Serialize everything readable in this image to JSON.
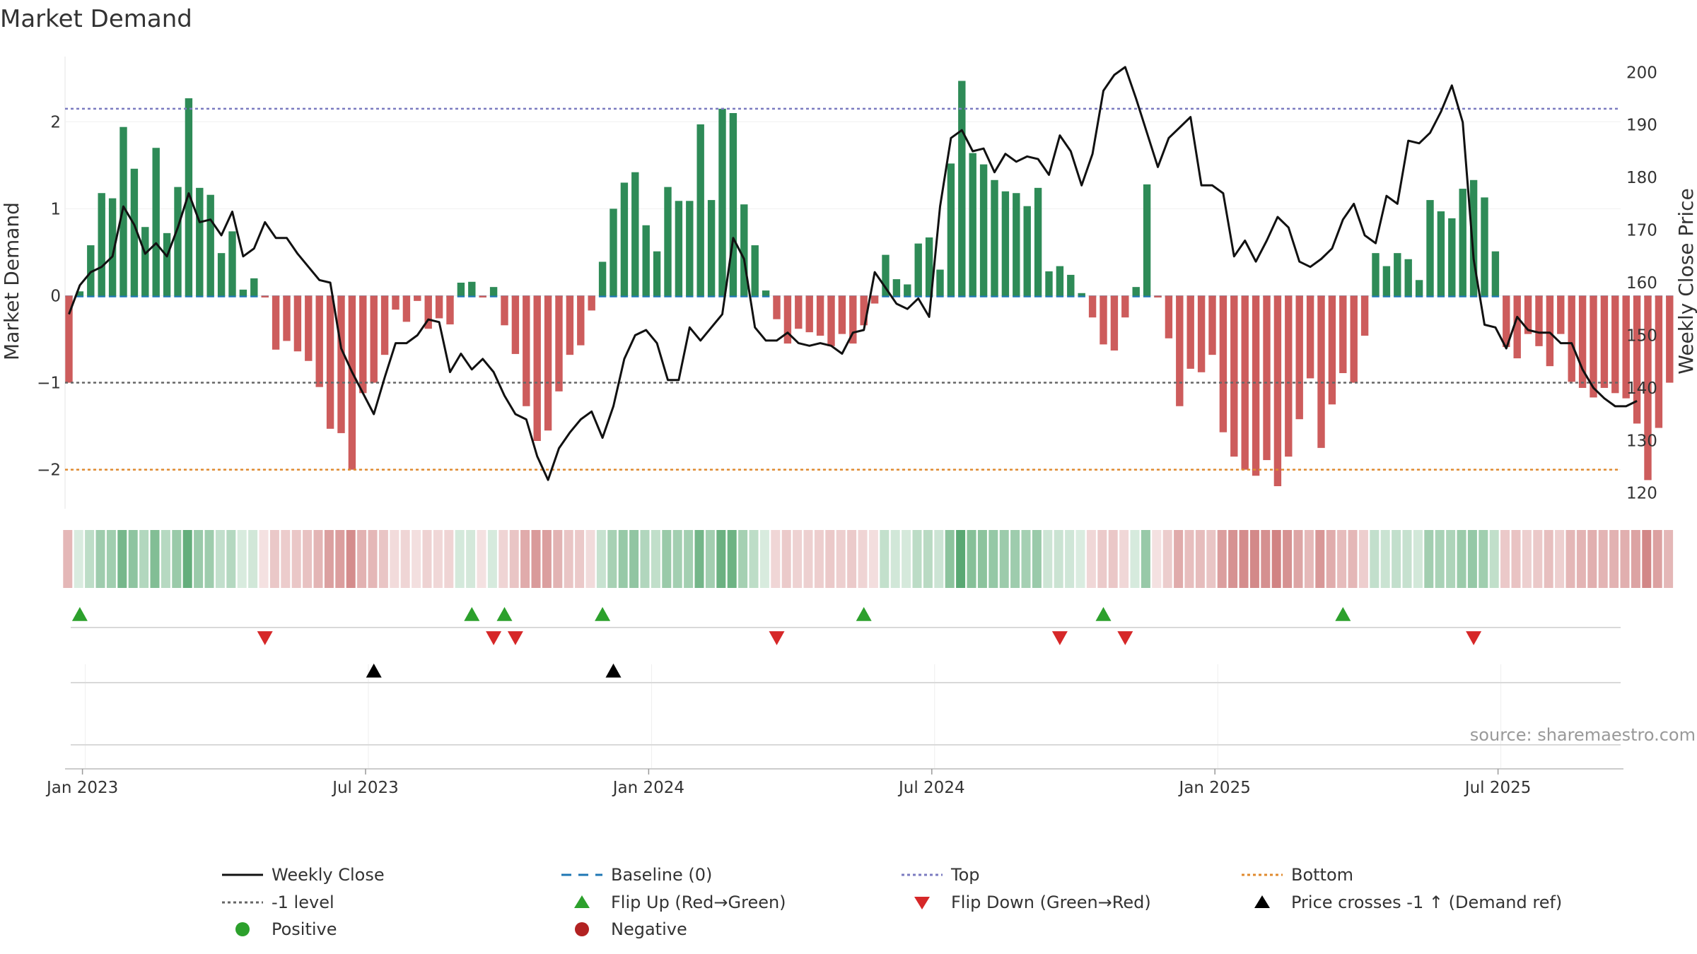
{
  "chart_data": {
    "type": "bar",
    "title": "Market Demand",
    "ylabel_left": "Market Demand",
    "ylabel_right": "Weekly Close Price",
    "source_note": "source: sharemaestro.com",
    "ylim_left": [
      -2.45,
      2.75
    ],
    "ylim_right": [
      117,
      203
    ],
    "yticks_left": [
      {
        "value": 2,
        "label": "2"
      },
      {
        "value": 1,
        "label": "1"
      },
      {
        "value": 0,
        "label": "0"
      },
      {
        "value": -1,
        "label": "−1"
      },
      {
        "value": -2,
        "label": "−2"
      }
    ],
    "yticks_right": [
      {
        "value": 200,
        "label": "200"
      },
      {
        "value": 190,
        "label": "190"
      },
      {
        "value": 180,
        "label": "180"
      },
      {
        "value": 170,
        "label": "170"
      },
      {
        "value": 160,
        "label": "160"
      },
      {
        "value": 150,
        "label": "150"
      },
      {
        "value": 140,
        "label": "140"
      },
      {
        "value": 130,
        "label": "130"
      },
      {
        "value": 120,
        "label": "120"
      }
    ],
    "xticks": [
      {
        "index": 1.5,
        "label": "Jan 2023"
      },
      {
        "index": 27.5,
        "label": "Jul 2023"
      },
      {
        "index": 53.5,
        "label": "Jan 2024"
      },
      {
        "index": 79.5,
        "label": "Jul 2024"
      },
      {
        "index": 105.5,
        "label": "Jan 2025"
      },
      {
        "index": 131.5,
        "label": "Jul 2025"
      }
    ],
    "reference_lines": {
      "top": 2.15,
      "minus_one": -1,
      "bottom": -2,
      "baseline": 0
    },
    "series": [
      {
        "name": "Market Demand",
        "values": [
          -1.0,
          0.05,
          0.58,
          1.18,
          1.12,
          1.94,
          1.46,
          0.79,
          1.7,
          0.72,
          1.25,
          2.27,
          1.24,
          1.16,
          0.49,
          0.74,
          0.07,
          0.2,
          -0.02,
          -0.62,
          -0.52,
          -0.64,
          -0.75,
          -1.05,
          -1.53,
          -1.58,
          -2.0,
          -1.12,
          -1.0,
          -0.68,
          -0.16,
          -0.3,
          -0.06,
          -0.38,
          -0.26,
          -0.33,
          0.15,
          0.16,
          -0.02,
          0.1,
          -0.34,
          -0.67,
          -1.27,
          -1.67,
          -1.55,
          -1.1,
          -0.68,
          -0.57,
          -0.17,
          0.39,
          1.0,
          1.3,
          1.42,
          0.81,
          0.51,
          1.25,
          1.09,
          1.09,
          1.97,
          1.1,
          2.15,
          2.1,
          1.05,
          0.58,
          0.06,
          -0.27,
          -0.55,
          -0.38,
          -0.42,
          -0.46,
          -0.58,
          -0.44,
          -0.55,
          -0.34,
          -0.09,
          0.47,
          0.19,
          0.13,
          0.6,
          0.67,
          0.3,
          1.52,
          2.47,
          1.64,
          1.51,
          1.33,
          1.2,
          1.18,
          1.03,
          1.24,
          0.28,
          0.34,
          0.24,
          0.03,
          -0.25,
          -0.56,
          -0.63,
          -0.25,
          0.1,
          1.28,
          -0.02,
          -0.49,
          -1.27,
          -0.84,
          -0.88,
          -0.68,
          -1.57,
          -1.85,
          -2.0,
          -2.07,
          -1.89,
          -2.19,
          -1.85,
          -1.42,
          -0.95,
          -1.75,
          -1.25,
          -0.89,
          -1.0,
          -0.46,
          0.49,
          0.34,
          0.49,
          0.42,
          0.18,
          1.1,
          0.97,
          0.89,
          1.23,
          1.33,
          1.13,
          0.51,
          -0.59,
          -0.72,
          -0.44,
          -0.58,
          -0.81,
          -0.44,
          -0.99,
          -1.06,
          -1.17,
          -1.06,
          -1.12,
          -1.18,
          -1.47,
          -2.12,
          -1.52,
          -1.0
        ]
      },
      {
        "name": "Weekly Close",
        "values": [
          154,
          159.5,
          162,
          163,
          165,
          174.5,
          171,
          165.5,
          167.5,
          165,
          170.5,
          177,
          171.5,
          172,
          169,
          173.5,
          165,
          166.5,
          171.5,
          168.5,
          168.5,
          165.5,
          163,
          160.5,
          160,
          147.5,
          143,
          139,
          135,
          142,
          148.5,
          148.5,
          150,
          153,
          152.5,
          143,
          146.5,
          143.5,
          145.5,
          143,
          138.5,
          135,
          134,
          127,
          122.5,
          128.5,
          131.5,
          134,
          135.5,
          130.5,
          136.5,
          145.5,
          150,
          151,
          148.5,
          141.5,
          141.5,
          151.5,
          149,
          151.5,
          154,
          168.5,
          164.5,
          151.5,
          149,
          149,
          150.5,
          148.5,
          148,
          148.5,
          148,
          146.5,
          150.5,
          151,
          162,
          159,
          156,
          155,
          157,
          153.5,
          174.5,
          187.5,
          189,
          185,
          185.5,
          181,
          184.5,
          183,
          184,
          183.5,
          180.5,
          188,
          185,
          178.5,
          184.5,
          196.5,
          199.5,
          201,
          195,
          188.5,
          182,
          187.5,
          189.5,
          191.5,
          178.5,
          178.5,
          177,
          165,
          168,
          164,
          168,
          172.5,
          170.5,
          164,
          163,
          164.5,
          166.5,
          172,
          175,
          169,
          167.5,
          176.5,
          175,
          187,
          186.5,
          188.5,
          192.5,
          197.5,
          190.5,
          164.5,
          152,
          151.5,
          147.5,
          153.5,
          151,
          150.5,
          150.5,
          148.5,
          148.5,
          143.5,
          140,
          138,
          136.5,
          136.5,
          137.5
        ]
      }
    ],
    "events": {
      "flip_up": [
        1,
        37,
        40,
        49,
        73,
        95,
        117
      ],
      "flip_down": [
        18,
        39,
        41,
        65,
        91,
        97,
        129
      ],
      "price_crosses": [
        28,
        50
      ]
    },
    "colors": {
      "positive": "#2e8b57",
      "negative": "#cd5c5c",
      "weekly_close": "#111111",
      "baseline": "#1f77b4",
      "top": "#7b7bc0",
      "minus_one": "#666666",
      "bottom": "#e08a2e",
      "flip_up": "#2ca02c",
      "flip_down": "#d62728",
      "price_cross": "#000000",
      "legend_positive": "#2ca02c",
      "legend_negative": "#b22222"
    },
    "legend": [
      {
        "label": "Weekly Close",
        "kind": "solid-line",
        "color": "#111111"
      },
      {
        "label": "Baseline (0)",
        "kind": "dashed-line",
        "color": "#1f77b4"
      },
      {
        "label": "Top",
        "kind": "dotted-line",
        "color": "#7b7bc0"
      },
      {
        "label": "Bottom",
        "kind": "dotted-line",
        "color": "#e08a2e"
      },
      {
        "label": "-1 level",
        "kind": "dotted-line",
        "color": "#666666"
      },
      {
        "label": "Flip Up (Red→Green)",
        "kind": "triangle-up",
        "color": "#2ca02c"
      },
      {
        "label": "Flip Down (Green→Red)",
        "kind": "triangle-down",
        "color": "#d62728"
      },
      {
        "label": "Price crosses -1 ↑ (Demand ref)",
        "kind": "triangle-up",
        "color": "#000000"
      },
      {
        "label": "Positive",
        "kind": "dot",
        "color": "#2ca02c"
      },
      {
        "label": "Negative",
        "kind": "dot",
        "color": "#b22222"
      }
    ]
  }
}
